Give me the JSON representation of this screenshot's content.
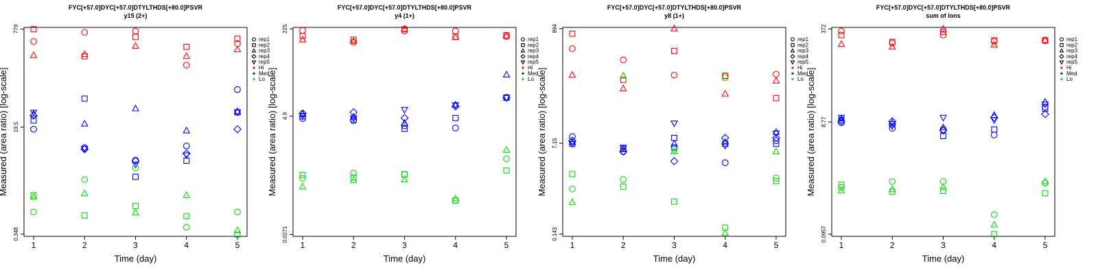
{
  "chart_data": [
    {
      "type": "scatter",
      "title": "FYC[+57.0]DYC[+57.0]DTYLTHDS[+80.0]PSVR",
      "subtitle": "y15 (2+)",
      "xlabel": "Time (day)",
      "ylabel": "Measured (area ratio) [log-scale]",
      "x_ticks": [
        "1",
        "2",
        "3",
        "4",
        "5"
      ],
      "y_ticks": [
        {
          "label": "0.348",
          "value": 0.348
        },
        {
          "label": "19.5",
          "value": 19.5
        },
        {
          "label": "779",
          "value": 779
        }
      ],
      "ylim": [
        0.32,
        830
      ],
      "log_y": true,
      "grid": false,
      "legend_position": "right",
      "series": [
        {
          "name": "Hi rep1",
          "color": "#ff0000",
          "marker": "circle",
          "x": [
            1,
            2,
            3,
            4,
            5
          ],
          "y": [
            490,
            690,
            720,
            200,
            450
          ]
        },
        {
          "name": "Hi rep2",
          "color": "#ff0000",
          "marker": "square",
          "x": [
            1,
            2,
            3,
            4,
            5
          ],
          "y": [
            775,
            280,
            580,
            400,
            540
          ]
        },
        {
          "name": "Hi rep3",
          "color": "#ff0000",
          "marker": "triangle",
          "x": [
            1,
            2,
            3,
            4,
            5
          ],
          "y": [
            290,
            300,
            410,
            280,
            360
          ]
        },
        {
          "name": "Med rep1",
          "color": "#0000ff",
          "marker": "circle",
          "x": [
            1,
            2,
            3,
            4,
            5
          ],
          "y": [
            18,
            9,
            5.6,
            9.6,
            80
          ]
        },
        {
          "name": "Med rep2",
          "color": "#0000ff",
          "marker": "square",
          "x": [
            1,
            2,
            3,
            4,
            5
          ],
          "y": [
            25,
            57,
            3.0,
            5.5,
            34
          ]
        },
        {
          "name": "Med rep3",
          "color": "#0000ff",
          "marker": "triangle",
          "x": [
            1,
            2,
            3,
            4,
            5
          ],
          "y": [
            32,
            22,
            39,
            17,
            35
          ]
        },
        {
          "name": "Med rep4",
          "color": "#0000ff",
          "marker": "diamond",
          "x": [
            1,
            2,
            3,
            4,
            5
          ],
          "y": [
            30,
            8.5,
            5.5,
            7.2,
            18
          ]
        },
        {
          "name": "Med rep5",
          "color": "#0000ff",
          "marker": "triangle-down",
          "x": [
            1,
            2,
            3,
            4,
            5
          ],
          "y": [
            34,
            8.7,
            4.8,
            6.8,
            34
          ]
        },
        {
          "name": "Lo rep1",
          "color": "#00dd00",
          "marker": "circle",
          "x": [
            1,
            2,
            3,
            4,
            5
          ],
          "y": [
            0.8,
            2.7,
            4.2,
            0.45,
            0.8
          ]
        },
        {
          "name": "Lo rep2",
          "color": "#00dd00",
          "marker": "square",
          "x": [
            1,
            2,
            3,
            4,
            5
          ],
          "y": [
            1.5,
            0.7,
            1.0,
            0.68,
            0.34
          ]
        },
        {
          "name": "Lo rep3",
          "color": "#00dd00",
          "marker": "triangle",
          "x": [
            1,
            2,
            3,
            4,
            5
          ],
          "y": [
            1.4,
            1.6,
            0.78,
            1.5,
            0.4
          ]
        }
      ]
    },
    {
      "type": "scatter",
      "title": "FYC[+57.0]DYC[+57.0]DTYLTHDS[+80.0]PSVR",
      "subtitle": "y4 (1+)",
      "xlabel": "Time (day)",
      "ylabel": "Measured (area ratio) [log-scale]",
      "x_ticks": [
        "1",
        "2",
        "3",
        "4",
        "5"
      ],
      "y_ticks": [
        {
          "label": "0.0271",
          "value": 0.0271
        },
        {
          "label": "4.9",
          "value": 4.9
        },
        {
          "label": "225",
          "value": 225
        }
      ],
      "ylim": [
        0.025,
        240
      ],
      "log_y": true,
      "grid": false,
      "legend_position": "right",
      "series": [
        {
          "name": "Hi rep1",
          "color": "#ff0000",
          "marker": "circle",
          "x": [
            1,
            2,
            3,
            4,
            5
          ],
          "y": [
            210,
            125,
            205,
            205,
            160
          ]
        },
        {
          "name": "Hi rep2",
          "color": "#ff0000",
          "marker": "square",
          "x": [
            1,
            2,
            3,
            4,
            5
          ],
          "y": [
            165,
            140,
            220,
            160,
            170
          ]
        },
        {
          "name": "Hi rep3",
          "color": "#ff0000",
          "marker": "triangle",
          "x": [
            1,
            2,
            3,
            4,
            5
          ],
          "y": [
            140,
            130,
            240,
            155,
            165
          ]
        },
        {
          "name": "Med rep1",
          "color": "#0000ff",
          "marker": "circle",
          "x": [
            1,
            2,
            3,
            4,
            5
          ],
          "y": [
            4.4,
            4.0,
            3.2,
            2.9,
            11.0
          ]
        },
        {
          "name": "Med rep2",
          "color": "#0000ff",
          "marker": "square",
          "x": [
            1,
            2,
            3,
            4,
            5
          ],
          "y": [
            4.8,
            4.2,
            2.8,
            4.5,
            11.0
          ]
        },
        {
          "name": "Med rep3",
          "color": "#0000ff",
          "marker": "triangle",
          "x": [
            1,
            2,
            3,
            4,
            5
          ],
          "y": [
            5.3,
            4.7,
            3.6,
            8.0,
            30.0
          ]
        },
        {
          "name": "Med rep4",
          "color": "#0000ff",
          "marker": "diamond",
          "x": [
            1,
            2,
            3,
            4,
            5
          ],
          "y": [
            5.5,
            5.8,
            4.5,
            7.5,
            11.0
          ]
        },
        {
          "name": "Med rep5",
          "color": "#0000ff",
          "marker": "triangle-down",
          "x": [
            1,
            2,
            3,
            4,
            5
          ],
          "y": [
            5.0,
            4.5,
            6.5,
            8.0,
            11.0
          ]
        },
        {
          "name": "Lo rep1",
          "color": "#00dd00",
          "marker": "circle",
          "x": [
            1,
            2,
            3,
            4,
            5
          ],
          "y": [
            0.32,
            0.4,
            0.38,
            0.12,
            0.75
          ]
        },
        {
          "name": "Lo rep2",
          "color": "#00dd00",
          "marker": "square",
          "x": [
            1,
            2,
            3,
            4,
            5
          ],
          "y": [
            0.37,
            0.33,
            0.38,
            0.12,
            0.45
          ]
        },
        {
          "name": "Lo rep3",
          "color": "#00dd00",
          "marker": "triangle",
          "x": [
            1,
            2,
            3,
            4,
            5
          ],
          "y": [
            0.22,
            0.29,
            0.3,
            0.13,
            1.1
          ]
        }
      ]
    },
    {
      "type": "scatter",
      "title": "FYC[+57.0]DYC[+57.0]DTYLTHDS[+80.0]PSVR",
      "subtitle": "y8 (1+)",
      "xlabel": "Time (day)",
      "ylabel": "Measured (area ratio) [log-scale]",
      "x_ticks": [
        "1",
        "2",
        "3",
        "4",
        "5"
      ],
      "y_ticks": [
        {
          "label": "0.143",
          "value": 0.143
        },
        {
          "label": "7.15",
          "value": 7.15
        },
        {
          "label": "994",
          "value": 994
        }
      ],
      "ylim": [
        0.13,
        1050
      ],
      "log_y": true,
      "grid": false,
      "legend_position": "right",
      "series": [
        {
          "name": "Hi rep1",
          "color": "#ff0000",
          "marker": "circle",
          "x": [
            1,
            2,
            3,
            4,
            5
          ],
          "y": [
            420,
            260,
            135,
            130,
            140
          ]
        },
        {
          "name": "Hi rep2",
          "color": "#ff0000",
          "marker": "square",
          "x": [
            1,
            2,
            3,
            4,
            5
          ],
          "y": [
            800,
            110,
            380,
            130,
            50
          ]
        },
        {
          "name": "Hi rep3",
          "color": "#ff0000",
          "marker": "triangle",
          "x": [
            1,
            2,
            3,
            4,
            5
          ],
          "y": [
            135,
            75,
            1050,
            60,
            105
          ]
        },
        {
          "name": "Med rep1",
          "color": "#0000ff",
          "marker": "circle",
          "x": [
            1,
            2,
            3,
            4,
            5
          ],
          "y": [
            9.5,
            5.0,
            6.0,
            3.1,
            8.0
          ]
        },
        {
          "name": "Med rep2",
          "color": "#0000ff",
          "marker": "square",
          "x": [
            1,
            2,
            3,
            4,
            5
          ],
          "y": [
            7.0,
            5.7,
            9.0,
            7.0,
            7.0
          ]
        },
        {
          "name": "Med rep3",
          "color": "#0000ff",
          "marker": "triangle",
          "x": [
            1,
            2,
            3,
            4,
            5
          ],
          "y": [
            7.5,
            5.5,
            7.0,
            7.5,
            11.5
          ]
        },
        {
          "name": "Med rep4",
          "color": "#0000ff",
          "marker": "diamond",
          "x": [
            1,
            2,
            3,
            4,
            5
          ],
          "y": [
            8.0,
            5.0,
            3.3,
            9.0,
            9.0
          ]
        },
        {
          "name": "Med rep5",
          "color": "#0000ff",
          "marker": "triangle-down",
          "x": [
            1,
            2,
            3,
            4,
            5
          ],
          "y": [
            7.0,
            6.0,
            17.0,
            6.5,
            11.0
          ]
        },
        {
          "name": "Lo rep1",
          "color": "#00dd00",
          "marker": "circle",
          "x": [
            1,
            2,
            3,
            4,
            5
          ],
          "y": [
            1.0,
            1.5,
            5.5,
            120,
            1.6
          ]
        },
        {
          "name": "Lo rep2",
          "color": "#00dd00",
          "marker": "square",
          "x": [
            1,
            2,
            3,
            4,
            5
          ],
          "y": [
            1.9,
            1.1,
            0.58,
            0.19,
            1.4
          ]
        },
        {
          "name": "Lo rep3",
          "color": "#00dd00",
          "marker": "triangle",
          "x": [
            1,
            2,
            3,
            4,
            5
          ],
          "y": [
            0.56,
            130,
            5.0,
            0.15,
            5.0
          ]
        }
      ]
    },
    {
      "type": "scatter",
      "title": "FYC[+57.0]DYC[+57.0]DTYLTHDS[+80.0]PSVR",
      "subtitle": "sum of Ions",
      "xlabel": "Time (day)",
      "ylabel": "Measured (area ratio) [log-scale]",
      "x_ticks": [
        "1",
        "2",
        "3",
        "4",
        "5"
      ],
      "y_ticks": [
        {
          "label": "0.0957",
          "value": 0.0957
        },
        {
          "label": "8.77",
          "value": 8.77
        },
        {
          "label": "372",
          "value": 372
        }
      ],
      "ylim": [
        0.088,
        395
      ],
      "log_y": true,
      "grid": false,
      "legend_position": "right",
      "series": [
        {
          "name": "Hi rep1",
          "color": "#ff0000",
          "marker": "circle",
          "x": [
            1,
            2,
            3,
            4,
            5
          ],
          "y": [
            340,
            210,
            290,
            225,
            230
          ]
        },
        {
          "name": "Hi rep2",
          "color": "#ff0000",
          "marker": "square",
          "x": [
            1,
            2,
            3,
            4,
            5
          ],
          "y": [
            290,
            220,
            330,
            235,
            235
          ]
        },
        {
          "name": "Hi rep3",
          "color": "#ff0000",
          "marker": "triangle",
          "x": [
            1,
            2,
            3,
            4,
            5
          ],
          "y": [
            200,
            180,
            370,
            195,
            235
          ]
        },
        {
          "name": "Med rep1",
          "color": "#0000ff",
          "marker": "circle",
          "x": [
            1,
            2,
            3,
            4,
            5
          ],
          "y": [
            8.5,
            6.8,
            6.5,
            5.2,
            16.0
          ]
        },
        {
          "name": "Med rep2",
          "color": "#0000ff",
          "marker": "square",
          "x": [
            1,
            2,
            3,
            4,
            5
          ],
          "y": [
            9.5,
            8.0,
            5.0,
            6.5,
            15.0
          ]
        },
        {
          "name": "Med rep3",
          "color": "#0000ff",
          "marker": "triangle",
          "x": [
            1,
            2,
            3,
            4,
            5
          ],
          "y": [
            10.0,
            8.5,
            7.0,
            11.5,
            19.5
          ]
        },
        {
          "name": "Med rep4",
          "color": "#0000ff",
          "marker": "diamond",
          "x": [
            1,
            2,
            3,
            4,
            5
          ],
          "y": [
            9.0,
            9.0,
            6.2,
            10.5,
            12.0
          ]
        },
        {
          "name": "Med rep5",
          "color": "#0000ff",
          "marker": "triangle-down",
          "x": [
            1,
            2,
            3,
            4,
            5
          ],
          "y": [
            10.5,
            7.5,
            10.5,
            9.5,
            18.0
          ]
        },
        {
          "name": "Lo rep1",
          "color": "#00dd00",
          "marker": "circle",
          "x": [
            1,
            2,
            3,
            4,
            5
          ],
          "y": [
            0.63,
            0.8,
            0.8,
            0.21,
            0.75
          ]
        },
        {
          "name": "Lo rep2",
          "color": "#00dd00",
          "marker": "square",
          "x": [
            1,
            2,
            3,
            4,
            5
          ],
          "y": [
            0.7,
            0.53,
            0.55,
            0.096,
            0.5
          ]
        },
        {
          "name": "Lo rep3",
          "color": "#00dd00",
          "marker": "triangle",
          "x": [
            1,
            2,
            3,
            4,
            5
          ],
          "y": [
            0.55,
            0.58,
            0.63,
            0.14,
            0.8
          ]
        }
      ]
    }
  ],
  "legend": {
    "items": [
      {
        "label": "rep1",
        "marker": "circle",
        "color": "#000000"
      },
      {
        "label": "rep2",
        "marker": "square",
        "color": "#000000"
      },
      {
        "label": "rep3",
        "marker": "triangle",
        "color": "#000000"
      },
      {
        "label": "rep4",
        "marker": "diamond",
        "color": "#000000"
      },
      {
        "label": "rep5",
        "marker": "triangle-down",
        "color": "#000000"
      },
      {
        "label": "Hi",
        "marker": "dot",
        "color": "#ff0000"
      },
      {
        "label": "Med",
        "marker": "dot",
        "color": "#0000ff"
      },
      {
        "label": "Lo",
        "marker": "dot",
        "color": "#00dd00"
      }
    ]
  }
}
